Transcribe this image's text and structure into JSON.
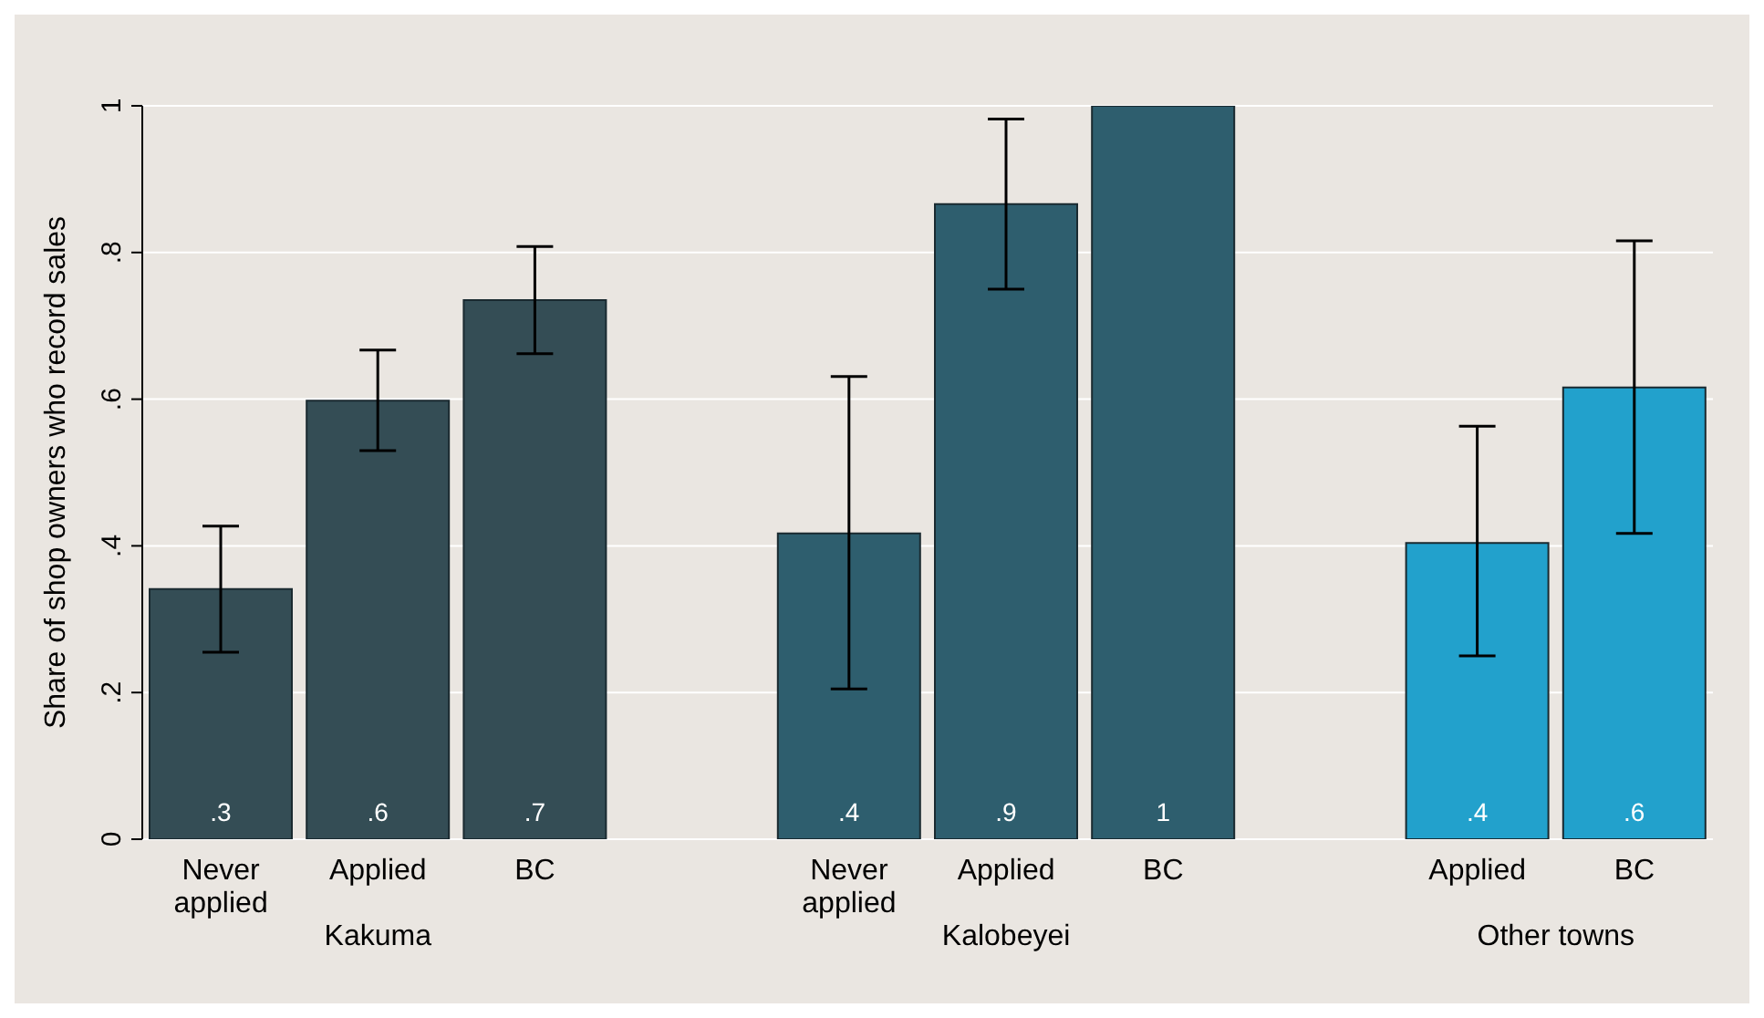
{
  "chart_data": {
    "type": "bar",
    "ylabel": "Share of shop owners who record sales",
    "categories": [
      "Never applied",
      "Applied",
      "BC",
      null,
      "Never applied",
      "Applied",
      "BC",
      null,
      "Applied",
      "BC"
    ],
    "values": [
      0.341,
      0.598,
      0.735,
      null,
      0.417,
      0.866,
      1.0,
      null,
      0.404,
      0.616
    ],
    "errors": [
      [
        0.255,
        0.427
      ],
      [
        0.53,
        0.667
      ],
      [
        0.662,
        0.808
      ],
      null,
      [
        0.205,
        0.631
      ],
      [
        0.75,
        0.982
      ],
      null,
      null,
      [
        0.25,
        0.563
      ],
      [
        0.417,
        0.816
      ]
    ],
    "value_labels": [
      ".3",
      ".6",
      ".7",
      null,
      ".4",
      ".9",
      "1",
      null,
      ".4",
      ".6"
    ],
    "colors": [
      "#344d55",
      "#344d55",
      "#344d55",
      "#000000",
      "#2e5e6e",
      "#2e5e6e",
      "#2e5e6e",
      "#000000",
      "#22a1cc",
      "#22a1cc"
    ],
    "annotations": [
      "Kakuma",
      "Kalobeyei",
      "Other towns"
    ],
    "ylim": [
      0,
      1
    ],
    "yticks": [
      0,
      {
        "value": 0.2,
        "label": ".2"
      },
      {
        "value": 0.4,
        "label": ".4"
      },
      {
        "value": 0.6,
        "label": ".6"
      },
      {
        "value": 0.8,
        "label": ".8"
      },
      1
    ],
    "grid": "y",
    "legend": false
  }
}
